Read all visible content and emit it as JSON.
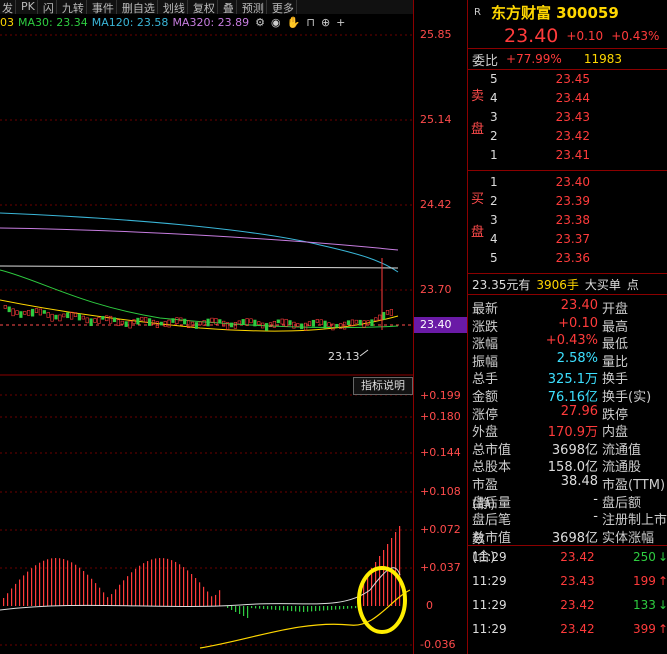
{
  "toolbar": [
    "发",
    "PK",
    "闪",
    "九转",
    "事件",
    "删自选",
    "划线",
    "复权",
    "叠",
    "预测",
    "更多"
  ],
  "ma": {
    "prefix": "03",
    "ma30": "MA30: 23.34",
    "ma120": "MA120: 23.58",
    "ma320": "MA320: 23.89"
  },
  "colors": {
    "ma30": "#2ecc40",
    "ma120": "#3ab6d8",
    "ma320": "#c77de0",
    "up": "#ff3b3b",
    "down": "#2ecc40"
  },
  "price_axis": [
    "25.85",
    "25.14",
    "24.42",
    "23.70",
    "23.40"
  ],
  "low_label": "23.13",
  "indicator_button": "指标说明",
  "macd_axis": [
    "+0.199",
    "+0.180",
    "+0.144",
    "+0.108",
    "+0.072",
    "+0.037",
    "0",
    "-0.036"
  ],
  "quote": {
    "title": "东方财富 300059",
    "price": "23.40",
    "change": "+0.10",
    "pct": "+0.43%",
    "weibi_label": "委比",
    "weibi": "+77.99%",
    "weicha": "11983",
    "sell_side": "卖盘",
    "buy_side": "买盘",
    "sells": [
      {
        "n": "5",
        "p": "23.45"
      },
      {
        "n": "4",
        "p": "23.44"
      },
      {
        "n": "3",
        "p": "23.43"
      },
      {
        "n": "2",
        "p": "23.42"
      },
      {
        "n": "1",
        "p": "23.41"
      }
    ],
    "buys": [
      {
        "n": "1",
        "p": "23.40"
      },
      {
        "n": "2",
        "p": "23.39"
      },
      {
        "n": "3",
        "p": "23.38"
      },
      {
        "n": "4",
        "p": "23.37"
      },
      {
        "n": "5",
        "p": "23.36"
      }
    ],
    "big_order": {
      "price": "23.35元有",
      "vol": "3906手",
      "label": "大买单",
      "extra": "点"
    },
    "stats": [
      {
        "k": "最新",
        "v": "23.40",
        "c": "red",
        "k2": "开盘"
      },
      {
        "k": "涨跌",
        "v": "+0.10",
        "c": "red",
        "k2": "最高"
      },
      {
        "k": "涨幅",
        "v": "+0.43%",
        "c": "red",
        "k2": "最低"
      },
      {
        "k": "振幅",
        "v": "2.58%",
        "c": "cyan",
        "k2": "量比"
      },
      {
        "k": "总手",
        "v": "325.1万",
        "c": "cyan",
        "k2": "换手"
      },
      {
        "k": "金额",
        "v": "76.16亿",
        "c": "cyan",
        "k2": "换手(实)"
      },
      {
        "k": "涨停",
        "v": "27.96",
        "c": "red",
        "k2": "跌停"
      },
      {
        "k": "外盘",
        "v": "170.9万",
        "c": "red",
        "k2": "内盘"
      },
      {
        "k": "总市值",
        "v": "3698亿",
        "c": "white",
        "k2": "流通值"
      },
      {
        "k": "总股本",
        "v": "158.0亿",
        "c": "white",
        "k2": "流通股"
      },
      {
        "k": "市盈(静)",
        "v": "38.48",
        "c": "white",
        "k2": "市盈(TTM)"
      },
      {
        "k": "盘后量",
        "v": "-",
        "c": "white",
        "k2": "盘后额"
      },
      {
        "k": "盘后笔数",
        "v": "-",
        "c": "white",
        "k2": "注册制上市"
      },
      {
        "k": "总市值(合)",
        "v": "3698亿",
        "c": "white",
        "k2": "实体涨幅"
      }
    ],
    "ticks": [
      {
        "t": "11:29",
        "p": "23.42",
        "v": "250",
        "c": "green"
      },
      {
        "t": "11:29",
        "p": "23.43",
        "v": "199",
        "c": "red"
      },
      {
        "t": "11:29",
        "p": "23.42",
        "v": "133",
        "c": "green"
      },
      {
        "t": "11:29",
        "p": "23.42",
        "v": "399",
        "c": "red"
      }
    ]
  }
}
